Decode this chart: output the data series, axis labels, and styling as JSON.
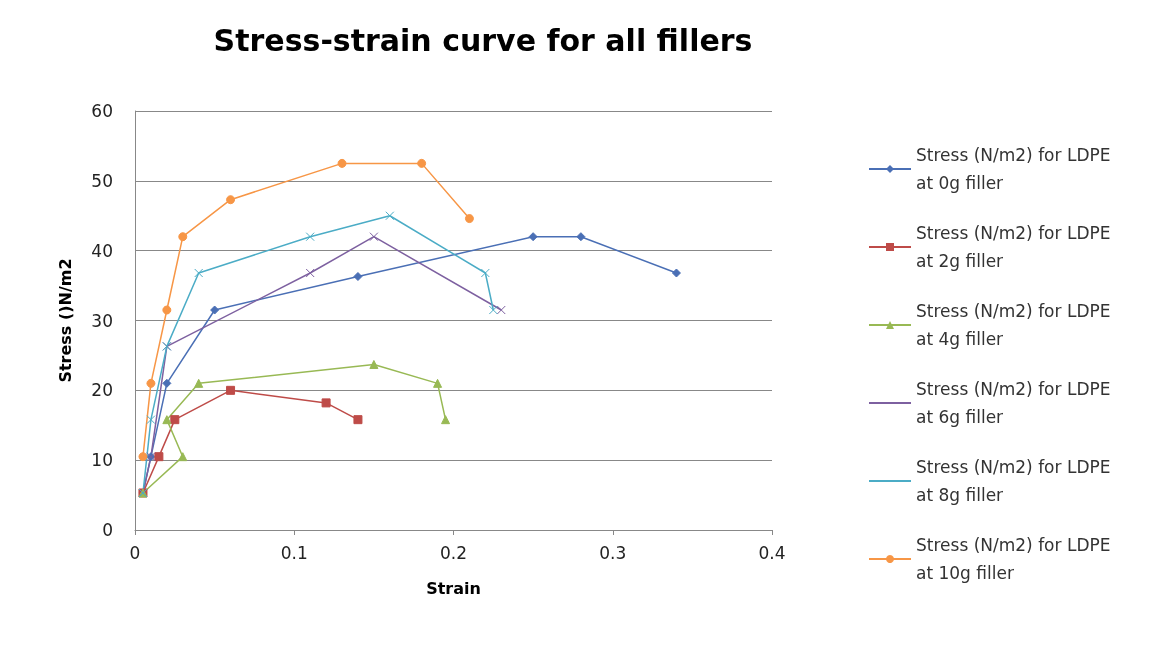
{
  "chart_data": {
    "type": "line",
    "title": "Stress-strain curve for all fillers",
    "xlabel": "Strain",
    "ylabel": "Stress ()N/m2",
    "xlim": [
      0,
      0.4
    ],
    "xticks": [
      0,
      0.1,
      0.2,
      0.3,
      0.4
    ],
    "ylim": [
      0,
      60
    ],
    "yticks": [
      0,
      10,
      20,
      30,
      40,
      50,
      60
    ],
    "grid": "y",
    "legend": "right",
    "line_style": "solid",
    "series": [
      {
        "name": "Stress (N/m2) for LDPE at 0g filler",
        "color": "#4a6fb5",
        "marker": "diamond",
        "x": [
          0.005,
          0.01,
          0.02,
          0.05,
          0.14,
          0.25,
          0.28,
          0.34
        ],
        "values": [
          5.3,
          10.5,
          21,
          31.5,
          36.3,
          42,
          42,
          36.8
        ]
      },
      {
        "name": "Stress (N/m2) for LDPE at 2g filler",
        "color": "#be4b48",
        "marker": "square",
        "x": [
          0.005,
          0.015,
          0.025,
          0.06,
          0.12,
          0.14
        ],
        "values": [
          5.3,
          10.5,
          15.8,
          20,
          18.2,
          15.8
        ]
      },
      {
        "name": "Stress (N/m2) for LDPE at 4g filler",
        "color": "#98b954",
        "marker": "triangle",
        "x": [
          0.005,
          0.03,
          0.02,
          0.04,
          0.15,
          0.19,
          0.195
        ],
        "values": [
          5.3,
          10.5,
          15.8,
          21,
          23.7,
          21,
          15.8
        ]
      },
      {
        "name": "Stress (N/m2) for LDPE at 6g filler",
        "color": "#7d60a0",
        "marker": "cross",
        "x": [
          0.005,
          0.01,
          0.02,
          0.11,
          0.15,
          0.23
        ],
        "values": [
          5.3,
          10.5,
          26.3,
          36.8,
          42,
          31.5
        ]
      },
      {
        "name": "Stress (N/m2) for LDPE at 8g filler",
        "color": "#4bacc6",
        "marker": "cross",
        "x": [
          0.005,
          0.01,
          0.02,
          0.04,
          0.11,
          0.16,
          0.22,
          0.225
        ],
        "values": [
          5.3,
          15.8,
          26.3,
          36.8,
          42,
          45,
          36.8,
          31.5
        ]
      },
      {
        "name": "Stress (N/m2) for LDPE at 10g filler",
        "color": "#f79646",
        "marker": "circle",
        "x": [
          0.005,
          0.01,
          0.02,
          0.03,
          0.06,
          0.13,
          0.18,
          0.21
        ],
        "values": [
          10.5,
          21,
          31.5,
          42,
          47.3,
          52.5,
          52.5,
          44.6
        ]
      }
    ]
  }
}
